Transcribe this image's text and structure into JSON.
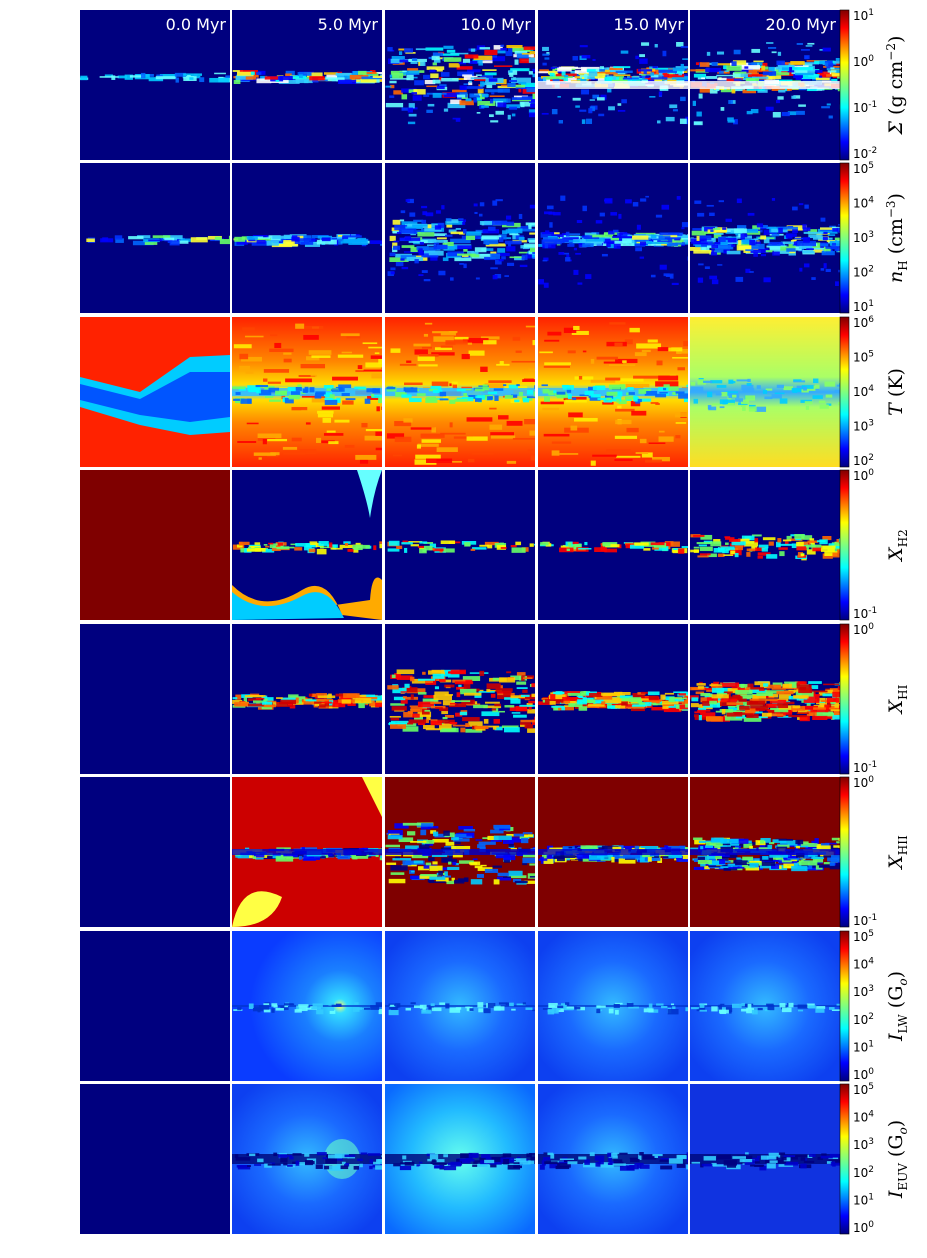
{
  "timestamps": [
    "0.0 Myr",
    "5.0 Myr",
    "10.0 Myr",
    "15.0 Myr",
    "20.0 Myr"
  ],
  "rows": [
    {
      "key": "sigma",
      "label": "Σ (g cm⁻²)",
      "ticks": [
        "10¹",
        "10⁰",
        "10⁻¹",
        "10⁻²"
      ],
      "ticks_mantissa": "10",
      "ticks_exp": [
        "1",
        "0",
        "-1",
        "-2"
      ]
    },
    {
      "key": "nH",
      "label": "n_H (cm⁻³)",
      "ticks_mantissa": "10",
      "ticks_exp": [
        "5",
        "4",
        "3",
        "2",
        "1"
      ]
    },
    {
      "key": "T",
      "label": "T (K)",
      "ticks_mantissa": "10",
      "ticks_exp": [
        "6",
        "5",
        "4",
        "3",
        "2"
      ]
    },
    {
      "key": "xH2",
      "label": "X_H2",
      "ticks_mantissa": "10",
      "ticks_exp": [
        "0",
        "-1"
      ]
    },
    {
      "key": "xHI",
      "label": "X_HI",
      "ticks_mantissa": "10",
      "ticks_exp": [
        "0",
        "-1"
      ]
    },
    {
      "key": "xHII",
      "label": "X_HII",
      "ticks_mantissa": "10",
      "ticks_exp": [
        "0",
        "-1"
      ]
    },
    {
      "key": "ILW",
      "label": "I_LW (G_o)",
      "ticks_mantissa": "10",
      "ticks_exp": [
        "5",
        "4",
        "3",
        "2",
        "1",
        "0"
      ]
    },
    {
      "key": "IEUV",
      "label": "I_EUV (G_o)",
      "ticks_mantissa": "10",
      "ticks_exp": [
        "5",
        "4",
        "3",
        "2",
        "1",
        "0"
      ]
    }
  ],
  "labels": {
    "sigma": {
      "sym": "Σ",
      "unit": "(g cm",
      "exp": "−2",
      "close": ")"
    },
    "nH": {
      "sym": "n",
      "sub": "H",
      "unit": "(cm",
      "exp": "−3",
      "close": ")"
    },
    "T": {
      "sym": "T",
      "unit": "(K)"
    },
    "xH2": {
      "sym": "X",
      "sub": "H2"
    },
    "xHI": {
      "sym": "X",
      "sub": "HI"
    },
    "xHII": {
      "sym": "X",
      "sub": "HII"
    },
    "ILW": {
      "sym": "I",
      "sub": "LW",
      "unit": "(G",
      "usub": "o",
      "close": ")"
    },
    "IEUV": {
      "sym": "I",
      "sub": "EUV",
      "unit": "(G",
      "usub": "o",
      "close": ")"
    }
  },
  "colormap": [
    "#00007f",
    "#0000ff",
    "#007fff",
    "#00ffff",
    "#7fff7f",
    "#ffff00",
    "#ff7f00",
    "#ff0000",
    "#7f0000"
  ]
}
